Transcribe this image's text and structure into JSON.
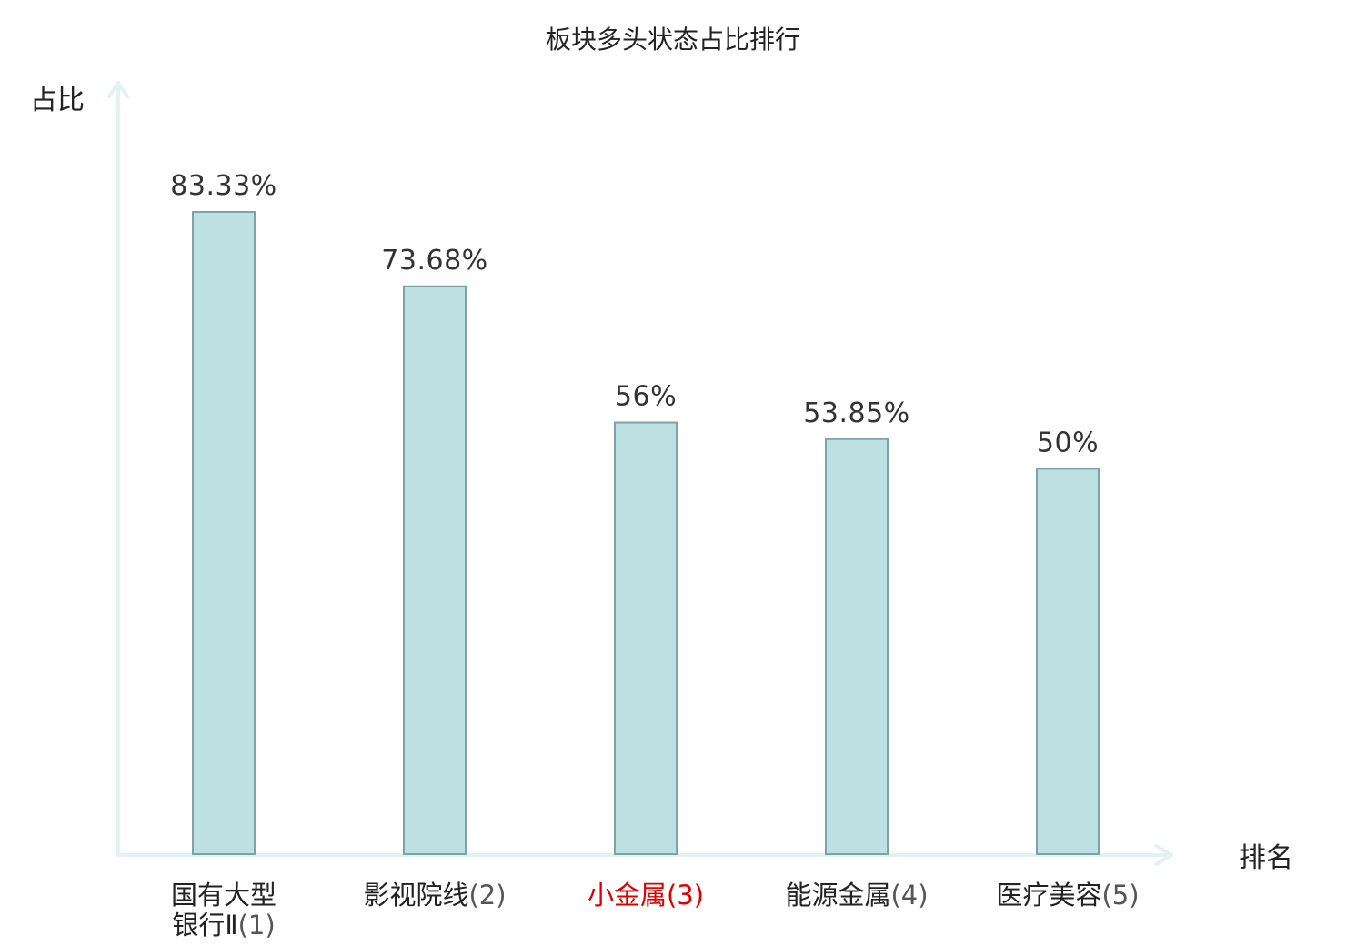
{
  "chart_data": {
    "type": "bar",
    "title": "板块多头状态占比排行",
    "xlabel": "排名",
    "ylabel": "占比",
    "categories": [
      {
        "lines": [
          "国有大型",
          "银行Ⅱ"
        ],
        "rank": "(1)",
        "highlight": false
      },
      {
        "lines": [
          "影视院线"
        ],
        "rank": "(2)",
        "highlight": false
      },
      {
        "lines": [
          "小金属"
        ],
        "rank": "(3)",
        "highlight": true
      },
      {
        "lines": [
          "能源金属"
        ],
        "rank": "(4)",
        "highlight": false
      },
      {
        "lines": [
          "医疗美容"
        ],
        "rank": "(5)",
        "highlight": false
      }
    ],
    "values": [
      83.33,
      73.68,
      56,
      53.85,
      50
    ],
    "value_labels": [
      "83.33%",
      "73.68%",
      "56%",
      "53.85%",
      "50%"
    ],
    "ylim": [
      0,
      100
    ],
    "grid": false,
    "legend": "none"
  },
  "colors": {
    "bar_fill": "#bde0e2",
    "bar_stroke": "#7fa3a5",
    "axis": "#e1f3f1",
    "highlight_text": "#e00000",
    "text": "#222222"
  }
}
